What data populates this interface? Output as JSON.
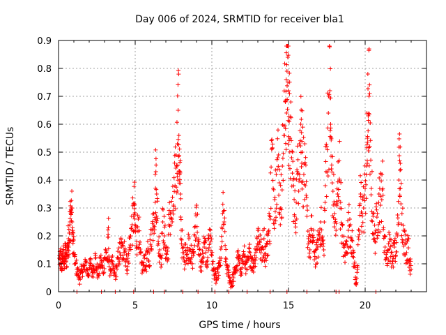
{
  "chart_data": {
    "type": "scatter",
    "title": "Day 006 of 2024, SRMTID for receiver bla1",
    "xlabel": "GPS time / hours",
    "ylabel": "SRMTID / TECUs",
    "xlim": [
      0,
      24
    ],
    "ylim": [
      0,
      0.9
    ],
    "xticks": [
      0,
      5,
      10,
      15,
      20
    ],
    "yticks": [
      0,
      0.1,
      0.2,
      0.3,
      0.4,
      0.5,
      0.6,
      0.7,
      0.8,
      0.9
    ],
    "xtick_labels": [
      "0",
      "5",
      "10",
      "15",
      "20"
    ],
    "ytick_labels": [
      "0",
      "0.1",
      "0.2",
      "0.3",
      "0.4",
      "0.5",
      "0.6",
      "0.7",
      "0.8",
      "0.9"
    ],
    "grid": true,
    "marker": "+",
    "series": [
      {
        "name": "SRMTID",
        "color": "#ff0000",
        "points": [
          [
            0.05,
            0.12
          ],
          [
            0.1,
            0.1
          ],
          [
            0.15,
            0.13
          ],
          [
            0.2,
            0.09
          ],
          [
            0.25,
            0.11
          ],
          [
            0.3,
            0.14
          ],
          [
            0.35,
            0.1
          ],
          [
            0.4,
            0.12
          ],
          [
            0.45,
            0.15
          ],
          [
            0.5,
            0.11
          ],
          [
            0.55,
            0.13
          ],
          [
            0.6,
            0.17
          ],
          [
            0.65,
            0.19
          ],
          [
            0.7,
            0.21
          ],
          [
            0.75,
            0.25
          ],
          [
            0.8,
            0.28
          ],
          [
            0.85,
            0.3
          ],
          [
            0.9,
            0.22
          ],
          [
            0.95,
            0.18
          ],
          [
            1.0,
            0.14
          ],
          [
            1.1,
            0.1
          ],
          [
            1.2,
            0.08
          ],
          [
            1.3,
            0.06
          ],
          [
            1.4,
            0.05
          ],
          [
            1.5,
            0.07
          ],
          [
            1.6,
            0.09
          ],
          [
            1.7,
            0.08
          ],
          [
            1.8,
            0.11
          ],
          [
            1.9,
            0.06
          ],
          [
            2.0,
            0.08
          ],
          [
            2.1,
            0.1
          ],
          [
            2.2,
            0.07
          ],
          [
            2.3,
            0.09
          ],
          [
            2.4,
            0.12
          ],
          [
            2.5,
            0.08
          ],
          [
            2.6,
            0.06
          ],
          [
            2.7,
            0.1
          ],
          [
            2.8,
            0.11
          ],
          [
            2.9,
            0.07
          ],
          [
            3.0,
            0.12
          ],
          [
            3.1,
            0.14
          ],
          [
            3.2,
            0.11
          ],
          [
            3.25,
            0.23
          ],
          [
            3.3,
            0.09
          ],
          [
            3.4,
            0.08
          ],
          [
            3.5,
            0.1
          ],
          [
            3.6,
            0.07
          ],
          [
            3.7,
            0.06
          ],
          [
            3.8,
            0.09
          ],
          [
            3.9,
            0.12
          ],
          [
            4.0,
            0.14
          ],
          [
            4.1,
            0.16
          ],
          [
            4.2,
            0.13
          ],
          [
            4.3,
            0.18
          ],
          [
            4.4,
            0.11
          ],
          [
            4.5,
            0.09
          ],
          [
            4.6,
            0.15
          ],
          [
            4.7,
            0.2
          ],
          [
            4.8,
            0.24
          ],
          [
            4.9,
            0.27
          ],
          [
            4.95,
            0.31
          ],
          [
            5.0,
            0.22
          ],
          [
            5.1,
            0.18
          ],
          [
            5.2,
            0.26
          ],
          [
            5.3,
            0.14
          ],
          [
            5.4,
            0.1
          ],
          [
            5.5,
            0.08
          ],
          [
            5.6,
            0.12
          ],
          [
            5.7,
            0.09
          ],
          [
            5.8,
            0.14
          ],
          [
            5.9,
            0.11
          ],
          [
            6.0,
            0.17
          ],
          [
            6.1,
            0.22
          ],
          [
            6.2,
            0.28
          ],
          [
            6.3,
            0.32
          ],
          [
            6.35,
            0.43
          ],
          [
            6.4,
            0.35
          ],
          [
            6.5,
            0.18
          ],
          [
            6.6,
            0.15
          ],
          [
            6.7,
            0.12
          ],
          [
            6.8,
            0.25
          ],
          [
            6.9,
            0.2
          ],
          [
            7.0,
            0.16
          ],
          [
            7.1,
            0.11
          ],
          [
            7.2,
            0.24
          ],
          [
            7.3,
            0.28
          ],
          [
            7.4,
            0.26
          ],
          [
            7.5,
            0.31
          ],
          [
            7.6,
            0.38
          ],
          [
            7.7,
            0.45
          ],
          [
            7.75,
            0.53
          ],
          [
            7.8,
            0.65
          ],
          [
            7.85,
            0.56
          ],
          [
            7.9,
            0.42
          ],
          [
            7.95,
            0.35
          ],
          [
            8.0,
            0.22
          ],
          [
            8.1,
            0.14
          ],
          [
            8.2,
            0.11
          ],
          [
            8.3,
            0.17
          ],
          [
            8.4,
            0.12
          ],
          [
            8.5,
            0.19
          ],
          [
            8.6,
            0.15
          ],
          [
            8.7,
            0.1
          ],
          [
            8.8,
            0.14
          ],
          [
            8.9,
            0.2
          ],
          [
            9.0,
            0.31
          ],
          [
            9.1,
            0.18
          ],
          [
            9.2,
            0.13
          ],
          [
            9.3,
            0.09
          ],
          [
            9.4,
            0.12
          ],
          [
            9.5,
            0.16
          ],
          [
            9.6,
            0.14
          ],
          [
            9.7,
            0.11
          ],
          [
            9.8,
            0.19
          ],
          [
            9.9,
            0.22
          ],
          [
            10.0,
            0.13
          ],
          [
            10.1,
            0.08
          ],
          [
            10.2,
            0.06
          ],
          [
            10.3,
            0.04
          ],
          [
            10.4,
            0.07
          ],
          [
            10.5,
            0.09
          ],
          [
            10.6,
            0.12
          ],
          [
            10.7,
            0.28
          ],
          [
            10.8,
            0.25
          ],
          [
            10.9,
            0.12
          ],
          [
            11.0,
            0.08
          ],
          [
            11.1,
            0.06
          ],
          [
            11.2,
            0.04
          ],
          [
            11.3,
            0.03
          ],
          [
            11.4,
            0.05
          ],
          [
            11.5,
            0.07
          ],
          [
            11.6,
            0.09
          ],
          [
            11.7,
            0.12
          ],
          [
            11.8,
            0.1
          ],
          [
            11.9,
            0.08
          ],
          [
            12.0,
            0.11
          ],
          [
            12.1,
            0.13
          ],
          [
            12.2,
            0.1
          ],
          [
            12.3,
            0.08
          ],
          [
            12.4,
            0.12
          ],
          [
            12.5,
            0.14
          ],
          [
            12.6,
            0.11
          ],
          [
            12.7,
            0.09
          ],
          [
            12.8,
            0.13
          ],
          [
            12.9,
            0.15
          ],
          [
            13.0,
            0.22
          ],
          [
            13.1,
            0.18
          ],
          [
            13.2,
            0.14
          ],
          [
            13.3,
            0.16
          ],
          [
            13.4,
            0.19
          ],
          [
            13.5,
            0.12
          ],
          [
            13.6,
            0.17
          ],
          [
            13.7,
            0.21
          ],
          [
            13.8,
            0.26
          ],
          [
            13.9,
            0.51
          ],
          [
            14.0,
            0.37
          ],
          [
            14.1,
            0.33
          ],
          [
            14.2,
            0.42
          ],
          [
            14.3,
            0.48
          ],
          [
            14.4,
            0.39
          ],
          [
            14.5,
            0.3
          ],
          [
            14.6,
            0.45
          ],
          [
            14.7,
            0.56
          ],
          [
            14.8,
            0.68
          ],
          [
            14.85,
            0.76
          ],
          [
            14.9,
            0.79
          ],
          [
            14.95,
            0.84
          ],
          [
            15.0,
            0.72
          ],
          [
            15.05,
            0.61
          ],
          [
            15.1,
            0.55
          ],
          [
            15.2,
            0.48
          ],
          [
            15.3,
            0.4
          ],
          [
            15.4,
            0.27
          ],
          [
            15.5,
            0.32
          ],
          [
            15.6,
            0.42
          ],
          [
            15.7,
            0.53
          ],
          [
            15.8,
            0.6
          ],
          [
            15.85,
            0.57
          ],
          [
            15.9,
            0.5
          ],
          [
            16.0,
            0.42
          ],
          [
            16.1,
            0.38
          ],
          [
            16.2,
            0.27
          ],
          [
            16.3,
            0.19
          ],
          [
            16.4,
            0.15
          ],
          [
            16.5,
            0.22
          ],
          [
            16.6,
            0.18
          ],
          [
            16.7,
            0.14
          ],
          [
            16.8,
            0.12
          ],
          [
            16.9,
            0.16
          ],
          [
            17.0,
            0.2
          ],
          [
            17.1,
            0.25
          ],
          [
            17.2,
            0.18
          ],
          [
            17.3,
            0.15
          ],
          [
            17.4,
            0.38
          ],
          [
            17.5,
            0.52
          ],
          [
            17.6,
            0.64
          ],
          [
            17.7,
            0.72
          ],
          [
            17.75,
            0.6
          ],
          [
            17.8,
            0.44
          ],
          [
            17.9,
            0.36
          ],
          [
            18.0,
            0.28
          ],
          [
            18.1,
            0.22
          ],
          [
            18.2,
            0.35
          ],
          [
            18.3,
            0.47
          ],
          [
            18.4,
            0.32
          ],
          [
            18.5,
            0.2
          ],
          [
            18.6,
            0.16
          ],
          [
            18.7,
            0.13
          ],
          [
            18.8,
            0.18
          ],
          [
            18.9,
            0.22
          ],
          [
            19.0,
            0.26
          ],
          [
            19.1,
            0.19
          ],
          [
            19.2,
            0.14
          ],
          [
            19.3,
            0.1
          ],
          [
            19.4,
            0.03
          ],
          [
            19.5,
            0.08
          ],
          [
            19.6,
            0.22
          ],
          [
            19.7,
            0.35
          ],
          [
            19.8,
            0.28
          ],
          [
            19.9,
            0.3
          ],
          [
            20.0,
            0.37
          ],
          [
            20.1,
            0.45
          ],
          [
            20.15,
            0.55
          ],
          [
            20.2,
            0.63
          ],
          [
            20.25,
            0.7
          ],
          [
            20.3,
            0.52
          ],
          [
            20.4,
            0.37
          ],
          [
            20.5,
            0.28
          ],
          [
            20.6,
            0.19
          ],
          [
            20.7,
            0.22
          ],
          [
            20.8,
            0.28
          ],
          [
            20.9,
            0.35
          ],
          [
            21.0,
            0.31
          ],
          [
            21.1,
            0.42
          ],
          [
            21.2,
            0.23
          ],
          [
            21.3,
            0.16
          ],
          [
            21.4,
            0.12
          ],
          [
            21.5,
            0.15
          ],
          [
            21.6,
            0.18
          ],
          [
            21.7,
            0.14
          ],
          [
            21.8,
            0.11
          ],
          [
            21.9,
            0.16
          ],
          [
            22.0,
            0.13
          ],
          [
            22.1,
            0.2
          ],
          [
            22.2,
            0.4
          ],
          [
            22.25,
            0.47
          ],
          [
            22.3,
            0.37
          ],
          [
            22.4,
            0.28
          ],
          [
            22.5,
            0.22
          ],
          [
            22.6,
            0.17
          ],
          [
            22.7,
            0.14
          ],
          [
            22.8,
            0.19
          ],
          [
            22.9,
            0.1
          ],
          [
            23.0,
            0.08
          ]
        ],
        "baseline_x": [
          1.2,
          2.8,
          3.7,
          4.9,
          6.2,
          6.9,
          8.1,
          9.1,
          10.2,
          11.1,
          12.3,
          13.8,
          14.9,
          16.2,
          18.1,
          18.3,
          20.7
        ]
      }
    ]
  }
}
